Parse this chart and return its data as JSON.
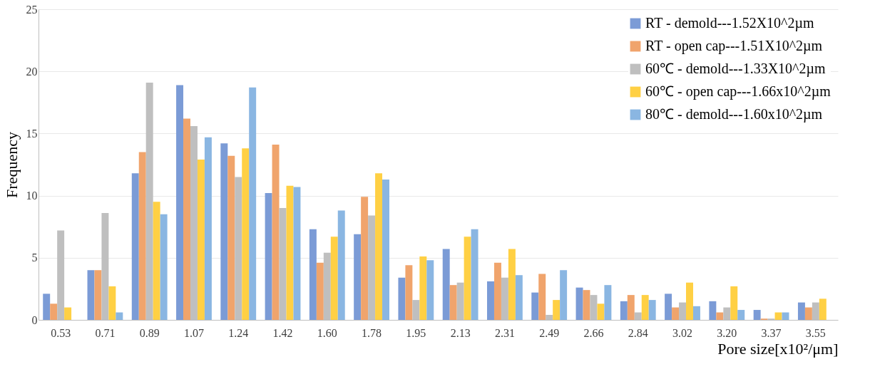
{
  "chart_data": {
    "type": "bar",
    "xlabel": "Pore size[x10²/μm]",
    "ylabel": "Frequency",
    "categories": [
      "0.53",
      "0.71",
      "0.89",
      "1.07",
      "1.24",
      "1.42",
      "1.60",
      "1.78",
      "1.95",
      "2.13",
      "2.31",
      "2.49",
      "2.66",
      "2.84",
      "3.02",
      "3.20",
      "3.37",
      "3.55"
    ],
    "series": [
      {
        "name": "RT - demold---1.52X10^2µm",
        "color": "#7b9bd6",
        "values": [
          2.1,
          4.0,
          11.8,
          18.9,
          14.2,
          10.2,
          7.3,
          6.9,
          3.4,
          5.7,
          3.1,
          2.2,
          2.6,
          1.5,
          2.1,
          1.5,
          0.8,
          1.4
        ]
      },
      {
        "name": "RT - open cap---1.51X10^2µm",
        "color": "#f0a46c",
        "values": [
          1.3,
          4.0,
          13.5,
          16.2,
          13.2,
          14.1,
          4.6,
          9.9,
          4.4,
          2.8,
          4.6,
          3.7,
          2.4,
          2.0,
          1.0,
          0.6,
          0.1,
          1.0
        ]
      },
      {
        "name": "60℃ - demold---1.33X10^2µm",
        "color": "#bfbfbf",
        "values": [
          7.2,
          8.6,
          19.1,
          15.6,
          11.5,
          9.0,
          5.4,
          8.4,
          1.6,
          3.0,
          3.4,
          0.4,
          2.0,
          0.6,
          1.4,
          1.0,
          0.1,
          1.4
        ]
      },
      {
        "name": "60℃ - open cap---1.66x10^2µm",
        "color": "#ffd044",
        "values": [
          1.0,
          2.7,
          9.5,
          12.9,
          13.8,
          10.8,
          6.7,
          11.8,
          5.1,
          6.7,
          5.7,
          1.6,
          1.3,
          2.0,
          3.0,
          2.7,
          0.6,
          1.7
        ]
      },
      {
        "name": "80℃ - demold---1.60x10^2µm",
        "color": "#8ab6e2",
        "values": [
          null,
          0.6,
          8.5,
          14.7,
          18.7,
          10.7,
          8.8,
          11.3,
          4.8,
          7.3,
          3.6,
          4.0,
          2.8,
          1.6,
          1.1,
          0.8,
          0.6,
          null
        ]
      }
    ],
    "ylim": [
      0,
      25
    ],
    "yticks": [
      0,
      5,
      10,
      15,
      20,
      25
    ],
    "grid": "y",
    "legend": "top right"
  }
}
